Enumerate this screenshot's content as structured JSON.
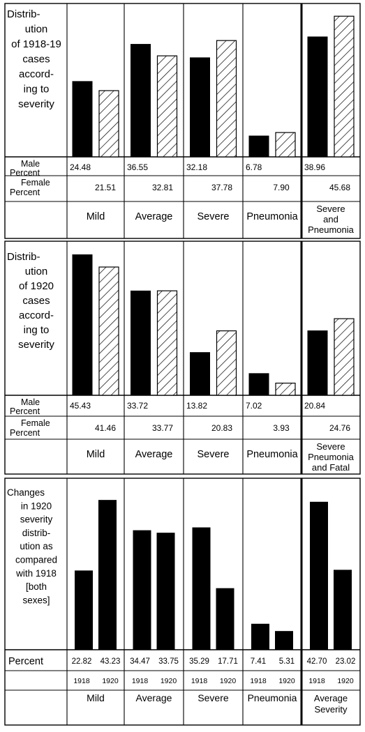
{
  "colors": {
    "ink": "#000000",
    "paper": "#ffffff",
    "male_fill": "#000000",
    "female_fill": "hatched"
  },
  "chart_data": [
    {
      "type": "bar",
      "title": [
        "Distrib-",
        "ution",
        "of 1918-19",
        "cases",
        "accord-",
        "ing to",
        "severity"
      ],
      "categories": [
        "Mild",
        "Average",
        "Severe",
        "Pneumonia",
        "Severe and Pneumonia"
      ],
      "category_lines": [
        [
          "Mild"
        ],
        [
          "Average"
        ],
        [
          "Severe"
        ],
        [
          "Pneumonia"
        ],
        [
          "Severe",
          "and",
          "Pneumonia"
        ]
      ],
      "row_labels": [
        [
          "Male",
          "Percent"
        ],
        [
          "Female",
          "Percent"
        ]
      ],
      "series": [
        {
          "name": "Male Percent",
          "values": [
            24.48,
            36.55,
            32.18,
            6.78,
            38.96
          ],
          "labels": [
            "24.48",
            "36.55",
            "32.18",
            "6.78",
            "38.96"
          ]
        },
        {
          "name": "Female Percent",
          "values": [
            21.51,
            32.81,
            37.78,
            7.9,
            45.68
          ],
          "labels": [
            "21.51",
            "32.81",
            "37.78",
            "7.90",
            "45.68"
          ]
        }
      ],
      "ylim": [
        0,
        48
      ]
    },
    {
      "type": "bar",
      "title": [
        "Distrib-",
        "ution",
        "of 1920",
        "cases",
        "accord-",
        "ing to",
        "severity"
      ],
      "categories": [
        "Mild",
        "Average",
        "Severe",
        "Pneumonia",
        "Severe Pneumonia and Fatal"
      ],
      "category_lines": [
        [
          "Mild"
        ],
        [
          "Average"
        ],
        [
          "Severe"
        ],
        [
          "Pneumonia"
        ],
        [
          "Severe",
          "Pneumonia",
          "and Fatal"
        ]
      ],
      "row_labels": [
        [
          "Male",
          "Percent"
        ],
        [
          "Female",
          "Percent"
        ]
      ],
      "series": [
        {
          "name": "Male Percent",
          "values": [
            45.43,
            33.72,
            13.82,
            7.02,
            20.84
          ],
          "labels": [
            "45.43",
            "33.72",
            "13.82",
            "7.02",
            "20.84"
          ]
        },
        {
          "name": "Female Percent",
          "values": [
            41.46,
            33.77,
            20.83,
            3.93,
            24.76
          ],
          "labels": [
            "41.46",
            "33.77",
            "20.83",
            "3.93",
            "24.76"
          ]
        }
      ],
      "ylim": [
        0,
        48
      ]
    },
    {
      "type": "bar",
      "title": [
        "Changes",
        "in 1920",
        "severity",
        "distrib-",
        "ution as",
        "compared",
        "with 1918",
        "[both",
        "sexes]"
      ],
      "categories": [
        "Mild",
        "Average",
        "Severe",
        "Pneumonia",
        "Average Severity"
      ],
      "category_lines": [
        [
          "Mild"
        ],
        [
          "Average"
        ],
        [
          "Severe"
        ],
        [
          "Pneumonia"
        ],
        [
          "Average",
          "Severity"
        ]
      ],
      "row_labels": [
        [
          "Percent"
        ]
      ],
      "year_labels": [
        "1918",
        "1920"
      ],
      "series": [
        {
          "name": "1918",
          "values": [
            22.82,
            34.47,
            35.29,
            7.41,
            42.7
          ],
          "labels": [
            "22.82",
            "34.47",
            "35.29",
            "7.41",
            "42.70"
          ]
        },
        {
          "name": "1920",
          "values": [
            43.23,
            33.75,
            17.71,
            5.31,
            23.02
          ],
          "labels": [
            "43.23",
            "33.75",
            "17.71",
            "5.31",
            "23.02"
          ]
        }
      ],
      "ylim": [
        0,
        48
      ]
    }
  ]
}
